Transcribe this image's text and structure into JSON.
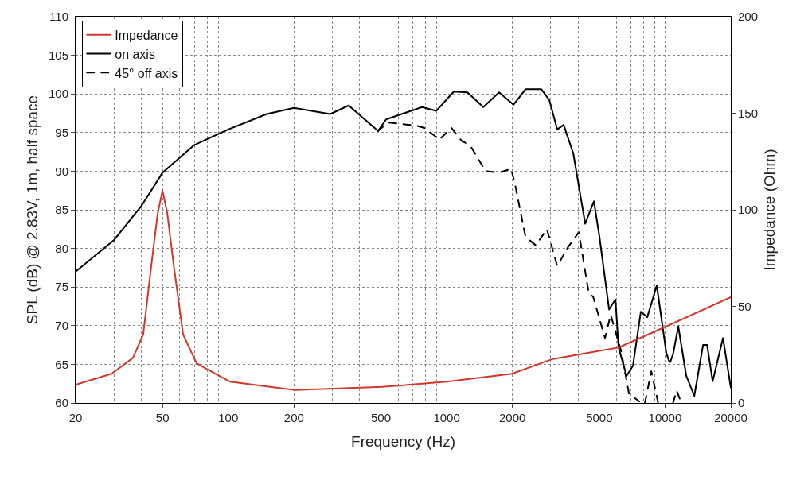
{
  "chart_data": {
    "type": "line",
    "xlabel": "Frequency (Hz)",
    "ylabel": "SPL (dB) @ 2.83V, 1m, half space",
    "y2label": "Impedance (Ohm)",
    "log": "x",
    "grid": true,
    "legend": "top left",
    "xlim": [
      20,
      20000
    ],
    "xticks": [
      20,
      50,
      100,
      200,
      500,
      1000,
      2000,
      5000,
      10000,
      20000
    ],
    "ylim": [
      60,
      110
    ],
    "yticks": [
      60,
      65,
      70,
      75,
      80,
      85,
      90,
      95,
      100,
      105,
      110
    ],
    "y2lim": [
      0,
      200
    ],
    "y2ticks": [
      0,
      50,
      100,
      150,
      200
    ],
    "series": [
      {
        "name": "Impedance",
        "color": "#d2372b",
        "axis": "y2",
        "line_style": "solid",
        "x": [
          20,
          29.2,
          36.6,
          40.8,
          44.4,
          47.5,
          50,
          52.6,
          56.3,
          62.1,
          71.6,
          102,
          202,
          506,
          1000,
          1990,
          3030,
          6124,
          10130,
          20000
        ],
        "values": [
          9.4,
          15.1,
          23.3,
          35.5,
          71,
          98,
          110,
          98,
          71,
          35.5,
          20.5,
          11,
          6.7,
          8.3,
          11,
          15.1,
          22.6,
          28.7,
          39.6,
          54.8
        ]
      },
      {
        "name": "on axis",
        "color": "#000000",
        "line_style": "solid",
        "x": [
          20,
          30,
          40,
          50,
          70,
          100,
          150,
          200,
          293,
          356,
          485,
          528,
          771,
          896,
          1078,
          1245,
          1472,
          1738,
          2023,
          2297,
          2716,
          2953,
          3210,
          3433,
          3801,
          4310,
          4723,
          5010,
          5544,
          5929,
          6124,
          6666,
          7127,
          7747,
          8290,
          9164,
          10130,
          10400,
          10570,
          10900,
          11500,
          12510,
          13610,
          14930,
          15580,
          16520,
          18420,
          20000
        ],
        "values": [
          77,
          81.1,
          85.5,
          89.8,
          93.4,
          95.4,
          97.4,
          98.2,
          97.4,
          98.5,
          95.2,
          96.7,
          98.3,
          97.8,
          100.3,
          100.2,
          98.3,
          100.2,
          98.6,
          100.6,
          100.6,
          99.2,
          95.4,
          96,
          92.3,
          83.2,
          86.1,
          81.5,
          72.1,
          73.4,
          67.2,
          63.5,
          64.8,
          71.8,
          71.1,
          75.2,
          66.5,
          65.5,
          65.3,
          66.4,
          69.9,
          63.5,
          60.9,
          67.5,
          67.5,
          62.8,
          68.4,
          62
        ]
      },
      {
        "name": "45° off axis",
        "color": "#000000",
        "line_style": "dashed",
        "x": [
          485,
          537,
          727,
          790,
          927,
          1052,
          1173,
          1276,
          1509,
          1738,
          1973,
          2057,
          2297,
          2559,
          2878,
          3210,
          3582,
          4029,
          4486,
          4680,
          5310,
          5636,
          6283,
          6840,
          7620,
          7800,
          8090,
          8650,
          9300,
          9570,
          10880,
          11300,
          11880
        ],
        "values": [
          95.2,
          96.3,
          95.9,
          95.6,
          94.1,
          95.6,
          93.9,
          93.4,
          90,
          89.8,
          90.3,
          88.3,
          81.5,
          80.4,
          82.5,
          77.7,
          80.1,
          82.1,
          74,
          73.8,
          68.4,
          71.4,
          66.8,
          61.2,
          60.2,
          null,
          60,
          64.1,
          60,
          null,
          60,
          61.6,
          60
        ]
      }
    ]
  }
}
